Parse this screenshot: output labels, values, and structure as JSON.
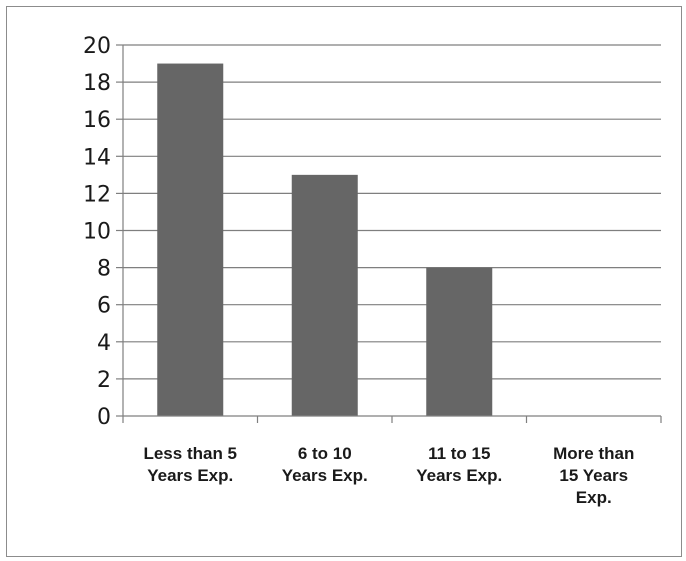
{
  "chart_data": {
    "type": "bar",
    "categories": [
      [
        "Less than 5",
        "Years Exp."
      ],
      [
        "6 to 10",
        "Years Exp."
      ],
      [
        "11 to 15",
        "Years Exp."
      ],
      [
        "More than",
        "15 Years",
        "Exp."
      ]
    ],
    "values": [
      19,
      13,
      8,
      0
    ],
    "title": "",
    "xlabel": "",
    "ylabel": "",
    "ylim": [
      0,
      20
    ],
    "yticks": [
      0,
      2,
      4,
      6,
      8,
      10,
      12,
      14,
      16,
      18,
      20
    ],
    "grid": true,
    "legend": "none",
    "colors": {
      "bar": "#666666",
      "grid": "#7f7f7f",
      "axis": "#7f7f7f"
    }
  }
}
